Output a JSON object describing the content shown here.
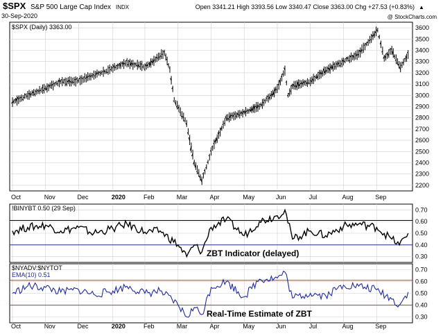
{
  "header": {
    "symbol": "$SPX",
    "name": "S&P 500 Large Cap Index",
    "exchange": "INDX",
    "date": "30-Sep-2020",
    "ohlc": "Open 3341.21  High 3393.56  Low 3340.47  Close 3363.00  Chg +27.53 (+0.83%)",
    "ohlc_arrow": "▲",
    "watermark": "@ StockCharts.com"
  },
  "panels": {
    "price_legend": "$SPX (Daily) 3363.00",
    "zbt_legend": "!BINYBT 0.50 (29 Sep)",
    "zbt_annotation": "ZBT Indicator (delayed)",
    "rt_legend_1": "$NYADV:$NYTOT",
    "rt_legend_2": "EMA(10) 0.51",
    "rt_annotation": "Real-Time Estimate of ZBT"
  },
  "colors": {
    "price": "#000000",
    "zbt": "#000000",
    "rt": "#1f2a9c",
    "upper_line_zbt": "#000000",
    "upper_line_rt": "#c0392b",
    "lower_line": "#2b2b8c",
    "grid": "#cfcfcf",
    "frame": "#000000"
  },
  "chart_data": [
    {
      "type": "line",
      "title": "$SPX (Daily) 3363.00",
      "style": "ohlc-bars",
      "x": [
        "Oct 1 2019",
        "Oct 15",
        "Nov 1",
        "Nov 15",
        "Dec 1",
        "Dec 15",
        "Jan 2 2020",
        "Jan 15",
        "Feb 1",
        "Feb 19",
        "Feb 24",
        "Feb 28",
        "Mar 9",
        "Mar 16",
        "Mar 23",
        "Apr 1",
        "Apr 15",
        "May 1",
        "May 15",
        "Jun 1",
        "Jun 8",
        "Jun 11",
        "Jun 15",
        "Jul 1",
        "Jul 15",
        "Aug 1",
        "Aug 15",
        "Sep 2",
        "Sep 8",
        "Sep 15",
        "Sep 23",
        "Sep 30"
      ],
      "values": [
        2940,
        3000,
        3065,
        3120,
        3130,
        3180,
        3240,
        3290,
        3250,
        3380,
        3230,
        2960,
        2750,
        2400,
        2240,
        2500,
        2800,
        2850,
        2900,
        3060,
        3220,
        3000,
        3080,
        3120,
        3220,
        3300,
        3370,
        3580,
        3330,
        3400,
        3250,
        3363
      ],
      "ylim": [
        2150,
        3650
      ],
      "yticks": [
        "3600",
        "3500",
        "3400",
        "3300",
        "3200",
        "3100",
        "3000",
        "2900",
        "2800",
        "2700",
        "2600",
        "2500",
        "2400",
        "2300",
        "2200"
      ],
      "xticks": [
        "Oct",
        "Nov",
        "Dec",
        "2020",
        "Feb",
        "Mar",
        "Apr",
        "May",
        "Jun",
        "Jul",
        "Aug",
        "Sep"
      ]
    },
    {
      "type": "line",
      "title": "!BINYBT 0.50 (29 Sep)",
      "x": [
        "Oct 1 2019",
        "Oct 15",
        "Nov 1",
        "Nov 15",
        "Dec 1",
        "Dec 15",
        "Jan 2 2020",
        "Jan 15",
        "Feb 1",
        "Feb 15",
        "Mar 1",
        "Mar 9",
        "Mar 16",
        "Mar 23",
        "Apr 1",
        "Apr 15",
        "May 1",
        "May 15",
        "Jun 1",
        "Jun 8",
        "Jun 15",
        "Jul 1",
        "Jul 15",
        "Aug 1",
        "Aug 15",
        "Sep 1",
        "Sep 15",
        "Sep 22",
        "Sep 30"
      ],
      "values": [
        0.52,
        0.55,
        0.57,
        0.52,
        0.55,
        0.5,
        0.54,
        0.58,
        0.51,
        0.52,
        0.4,
        0.3,
        0.4,
        0.34,
        0.55,
        0.62,
        0.48,
        0.6,
        0.65,
        0.7,
        0.45,
        0.52,
        0.48,
        0.56,
        0.58,
        0.55,
        0.45,
        0.4,
        0.5
      ],
      "ylim": [
        0.25,
        0.75
      ],
      "yticks": [
        "0.70",
        "0.60",
        "0.50",
        "0.40",
        "0.30"
      ],
      "reference_lines": [
        0.61,
        0.4
      ]
    },
    {
      "type": "line",
      "title": "EMA(10) 0.51",
      "x": [
        "Oct 1 2019",
        "Oct 15",
        "Nov 1",
        "Nov 15",
        "Dec 1",
        "Dec 15",
        "Jan 2 2020",
        "Jan 15",
        "Feb 1",
        "Feb 15",
        "Mar 1",
        "Mar 9",
        "Mar 16",
        "Mar 23",
        "Apr 1",
        "Apr 15",
        "May 1",
        "May 15",
        "Jun 1",
        "Jun 8",
        "Jun 15",
        "Jul 1",
        "Jul 15",
        "Aug 1",
        "Aug 15",
        "Sep 1",
        "Sep 15",
        "Sep 22",
        "Sep 30"
      ],
      "values": [
        0.5,
        0.56,
        0.55,
        0.51,
        0.53,
        0.49,
        0.52,
        0.56,
        0.5,
        0.52,
        0.4,
        0.3,
        0.38,
        0.32,
        0.55,
        0.6,
        0.47,
        0.62,
        0.63,
        0.68,
        0.46,
        0.5,
        0.48,
        0.57,
        0.56,
        0.53,
        0.45,
        0.4,
        0.51
      ],
      "ylim": [
        0.25,
        0.75
      ],
      "yticks": [
        "0.70",
        "0.60",
        "0.50",
        "0.40",
        "0.30"
      ],
      "reference_lines": [
        0.61,
        0.4
      ]
    }
  ]
}
